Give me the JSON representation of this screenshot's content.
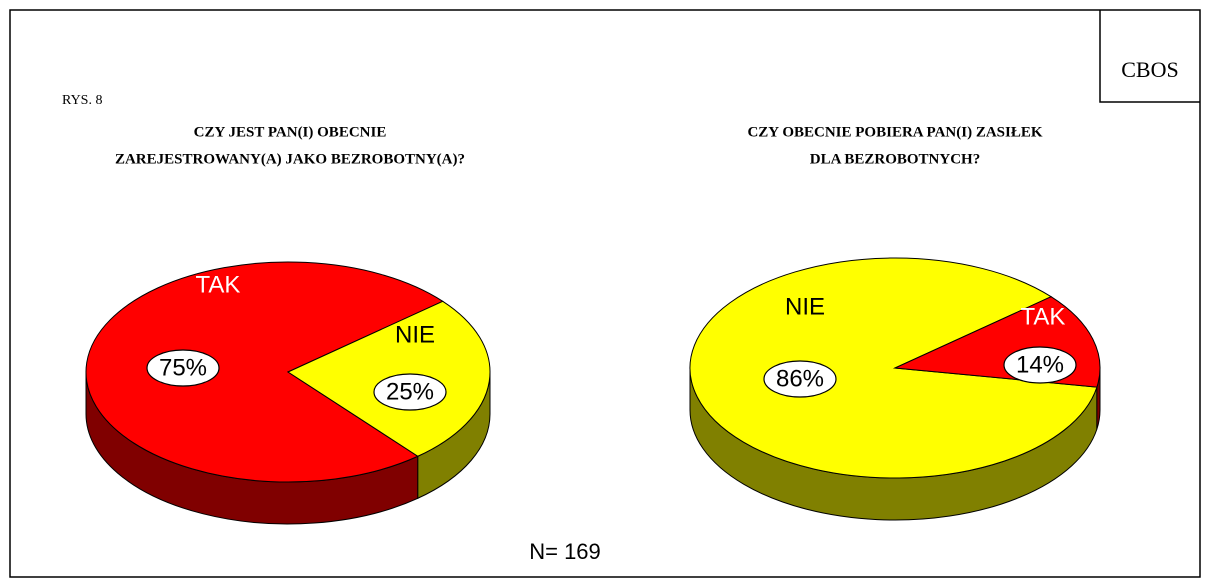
{
  "header": {
    "brand": "CBOS",
    "figure": "RYS. 8"
  },
  "note": "N= 169",
  "chart_data": [
    {
      "type": "pie",
      "title": [
        "CZY JEST PAN(I) OBECNIE",
        "ZAREJESTROWANY(A)  JAKO BEZROBOTNY(A)?"
      ],
      "categories": [
        "TAK",
        "NIE"
      ],
      "values": [
        75,
        25
      ],
      "value_labels": [
        "75%",
        "25%"
      ],
      "colors": [
        "#ff0000",
        "#ffff00"
      ],
      "side_colors": [
        "#800000",
        "#808000"
      ]
    },
    {
      "type": "pie",
      "title": [
        "CZY OBECNIE POBIERA PAN(I) ZASIŁEK",
        "DLA  BEZROBOTNYCH?"
      ],
      "categories": [
        "NIE",
        "TAK"
      ],
      "values": [
        86,
        14
      ],
      "value_labels": [
        "86%",
        "14%"
      ],
      "colors": [
        "#ffff00",
        "#ff0000"
      ],
      "side_colors": [
        "#808000",
        "#800000"
      ]
    }
  ]
}
